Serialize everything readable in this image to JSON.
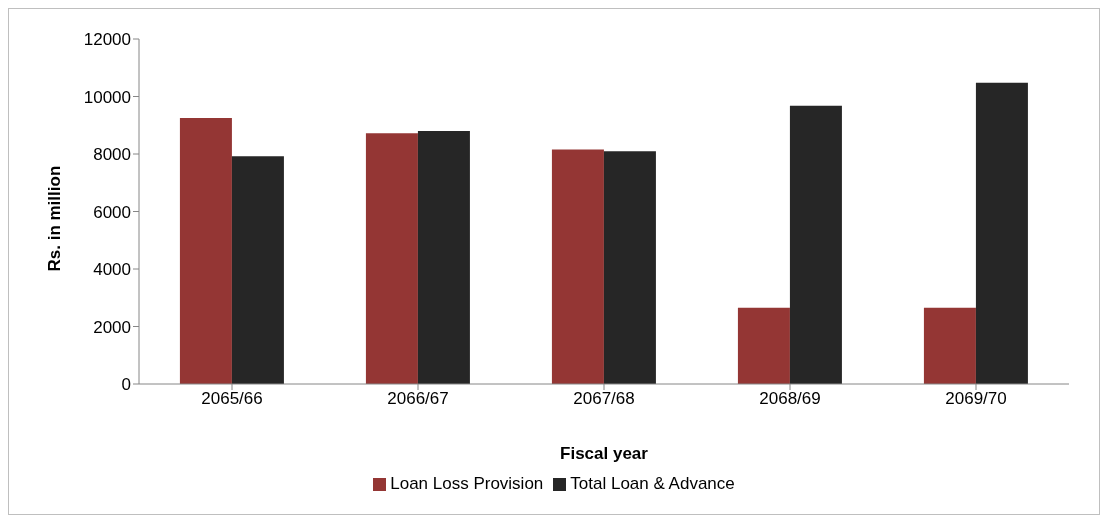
{
  "chart_data": {
    "type": "bar",
    "xlabel": "Fiscal year",
    "ylabel": "Rs. in million",
    "categories": [
      "2065/66",
      "2066/67",
      "2067/68",
      "2068/69",
      "2069/70"
    ],
    "series": [
      {
        "name": "Loan Loss Provision",
        "color": "#943634",
        "values": [
          9250,
          8720,
          8160,
          2650,
          2650
        ]
      },
      {
        "name": "Total Loan & Advance",
        "color": "#262626",
        "values": [
          7920,
          8800,
          8100,
          9680,
          10480
        ]
      }
    ],
    "ylim": [
      0,
      12000
    ],
    "yticks": [
      0,
      2000,
      4000,
      6000,
      8000,
      10000,
      12000
    ],
    "grid": false,
    "legend": "bottom"
  }
}
